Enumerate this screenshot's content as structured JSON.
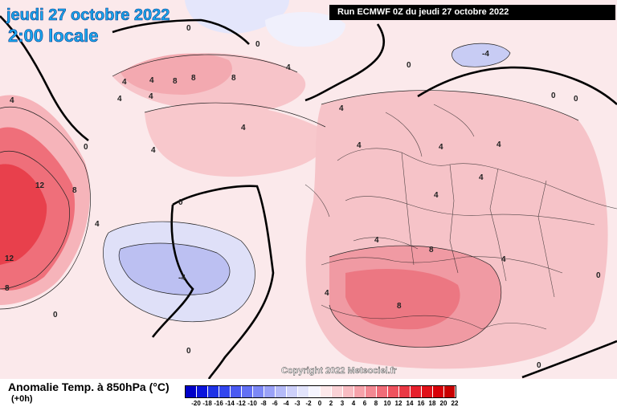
{
  "title": {
    "date": "jeudi 27 octobre 2022",
    "time": "2:00 locale"
  },
  "run_info": "Run ECMWF 0Z du jeudi 27 octobre 2022",
  "copyright": "Copyright 2022 Meteociel.fr",
  "legend": {
    "title": "Anomalie Temp. à 850hPa (°C)",
    "subtitle": "(+0h)",
    "ticks": [
      "-20",
      "-18",
      "-16",
      "-14",
      "-12",
      "-10",
      "-8",
      "-6",
      "-4",
      "-3",
      "-2",
      "0",
      "2",
      "3",
      "4",
      "6",
      "8",
      "10",
      "12",
      "14",
      "16",
      "18",
      "20",
      "22"
    ],
    "colors": [
      "#0000c8",
      "#0a14dc",
      "#1e32e6",
      "#3246ee",
      "#4a5af2",
      "#6270f4",
      "#7c88f6",
      "#9aa2f8",
      "#b4baf8",
      "#cdd0fa",
      "#e2e4fc",
      "#f4f4fe",
      "#fde8ea",
      "#fad2d6",
      "#f8bcc2",
      "#f6a2aa",
      "#f38892",
      "#f06c78",
      "#ee525e",
      "#ea3844",
      "#e6202c",
      "#e01018",
      "#d80008",
      "#c80000"
    ]
  },
  "contour_labels": [
    {
      "text": "0"
    },
    {
      "text": "0"
    },
    {
      "text": "0"
    },
    {
      "text": "4"
    },
    {
      "text": "4"
    },
    {
      "text": "4"
    },
    {
      "text": "8"
    },
    {
      "text": "8"
    },
    {
      "text": "4"
    },
    {
      "text": "4"
    },
    {
      "text": "4"
    },
    {
      "text": "8"
    },
    {
      "text": "4"
    },
    {
      "text": "4"
    },
    {
      "text": "4"
    },
    {
      "text": "4"
    },
    {
      "text": "0"
    },
    {
      "text": "0"
    },
    {
      "text": "12"
    },
    {
      "text": "8"
    },
    {
      "text": "12"
    },
    {
      "text": "8"
    },
    {
      "text": "4"
    },
    {
      "text": "0"
    },
    {
      "text": "-4"
    },
    {
      "text": "0"
    },
    {
      "text": "0"
    },
    {
      "text": "4"
    },
    {
      "text": "4"
    },
    {
      "text": "4"
    },
    {
      "text": "8"
    },
    {
      "text": "4"
    },
    {
      "text": "4"
    },
    {
      "text": "0"
    },
    {
      "text": "8"
    },
    {
      "text": "4"
    },
    {
      "text": "-4"
    },
    {
      "text": "0"
    },
    {
      "text": "4"
    },
    {
      "text": "0"
    }
  ]
}
